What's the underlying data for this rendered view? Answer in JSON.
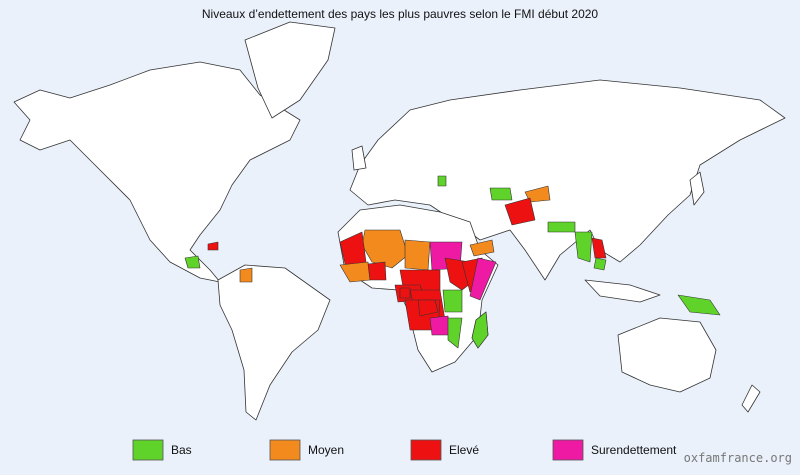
{
  "title": "Niveaux d’endettement des pays les plus pauvres selon le FMI début 2020",
  "legend": [
    {
      "label": "Bas",
      "color": "#5fd32a"
    },
    {
      "label": "Moyen",
      "color": "#f28a1e"
    },
    {
      "label": "Elevé",
      "color": "#ee1111"
    },
    {
      "label": "Surendettement",
      "color": "#ee1aa3"
    }
  ],
  "watermark": "oxfamfrance.org"
}
